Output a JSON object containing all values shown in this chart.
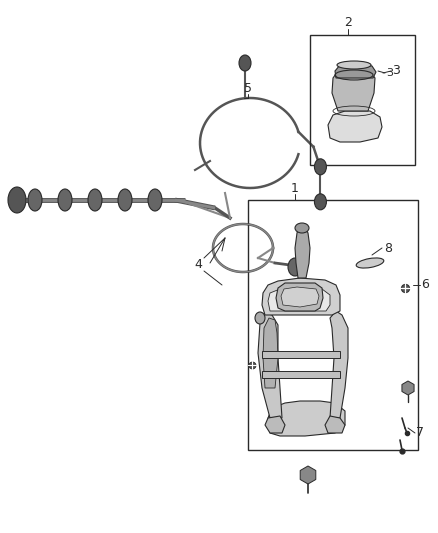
{
  "bg_color": "#ffffff",
  "line_color": "#2a2a2a",
  "label_color": "#1a1a1a",
  "fig_width": 4.38,
  "fig_height": 5.33,
  "dpi": 100,
  "cable_color": "#555555",
  "dark_color": "#333333",
  "gray_fill": "#cccccc",
  "mid_gray": "#aaaaaa",
  "light_gray": "#e8e8e8"
}
